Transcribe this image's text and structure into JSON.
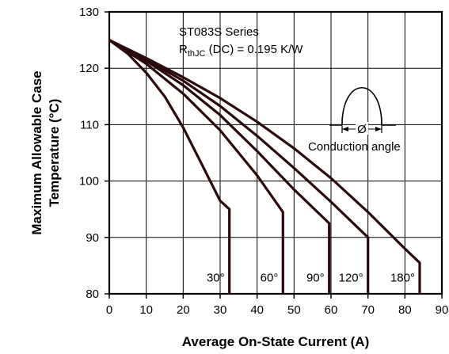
{
  "chart_data": {
    "type": "line",
    "title": "ST083S Series",
    "subtitle": {
      "prefix": "R",
      "sub": "thJC",
      "suffix": " (DC) = 0.195 K/W"
    },
    "xlabel": "Average On-State Current (A)",
    "ylabel_line1": "Maximum Allowable Case",
    "ylabel_line2": "Temperature (°C)",
    "xlim": [
      0,
      90
    ],
    "ylim": [
      80,
      130
    ],
    "xticks": [
      0,
      10,
      20,
      30,
      40,
      50,
      60,
      70,
      80,
      90
    ],
    "yticks": [
      80,
      90,
      100,
      110,
      120,
      130
    ],
    "grid": true,
    "inset_label": "Conduction angle",
    "inset_symbol": "Ø",
    "series": [
      {
        "name": "30°",
        "x": [
          0,
          5,
          10,
          15,
          20,
          25,
          30,
          32.5,
          32.5
        ],
        "y": [
          125,
          122.6,
          119.2,
          115,
          109.5,
          103,
          96.5,
          95,
          80
        ]
      },
      {
        "name": "60°",
        "x": [
          0,
          10,
          20,
          30,
          40,
          47,
          47
        ],
        "y": [
          125,
          120.8,
          115.5,
          109,
          101,
          94.5,
          80
        ]
      },
      {
        "name": "90°",
        "x": [
          0,
          10,
          20,
          30,
          40,
          50,
          59.5,
          59.5
        ],
        "y": [
          125,
          121.3,
          117,
          111.7,
          105.3,
          98.5,
          92.5,
          80
        ]
      },
      {
        "name": "120°",
        "x": [
          0,
          10,
          20,
          30,
          40,
          50,
          60,
          70,
          70
        ],
        "y": [
          125,
          121.5,
          117.8,
          113.3,
          108,
          102.3,
          96.3,
          90,
          80
        ]
      },
      {
        "name": "180°",
        "x": [
          0,
          10,
          20,
          30,
          40,
          50,
          60,
          70,
          80,
          84,
          84
        ],
        "y": [
          125,
          121.8,
          118.4,
          114.7,
          110.5,
          105.8,
          100.5,
          94.5,
          88,
          85.5,
          80
        ]
      }
    ]
  }
}
